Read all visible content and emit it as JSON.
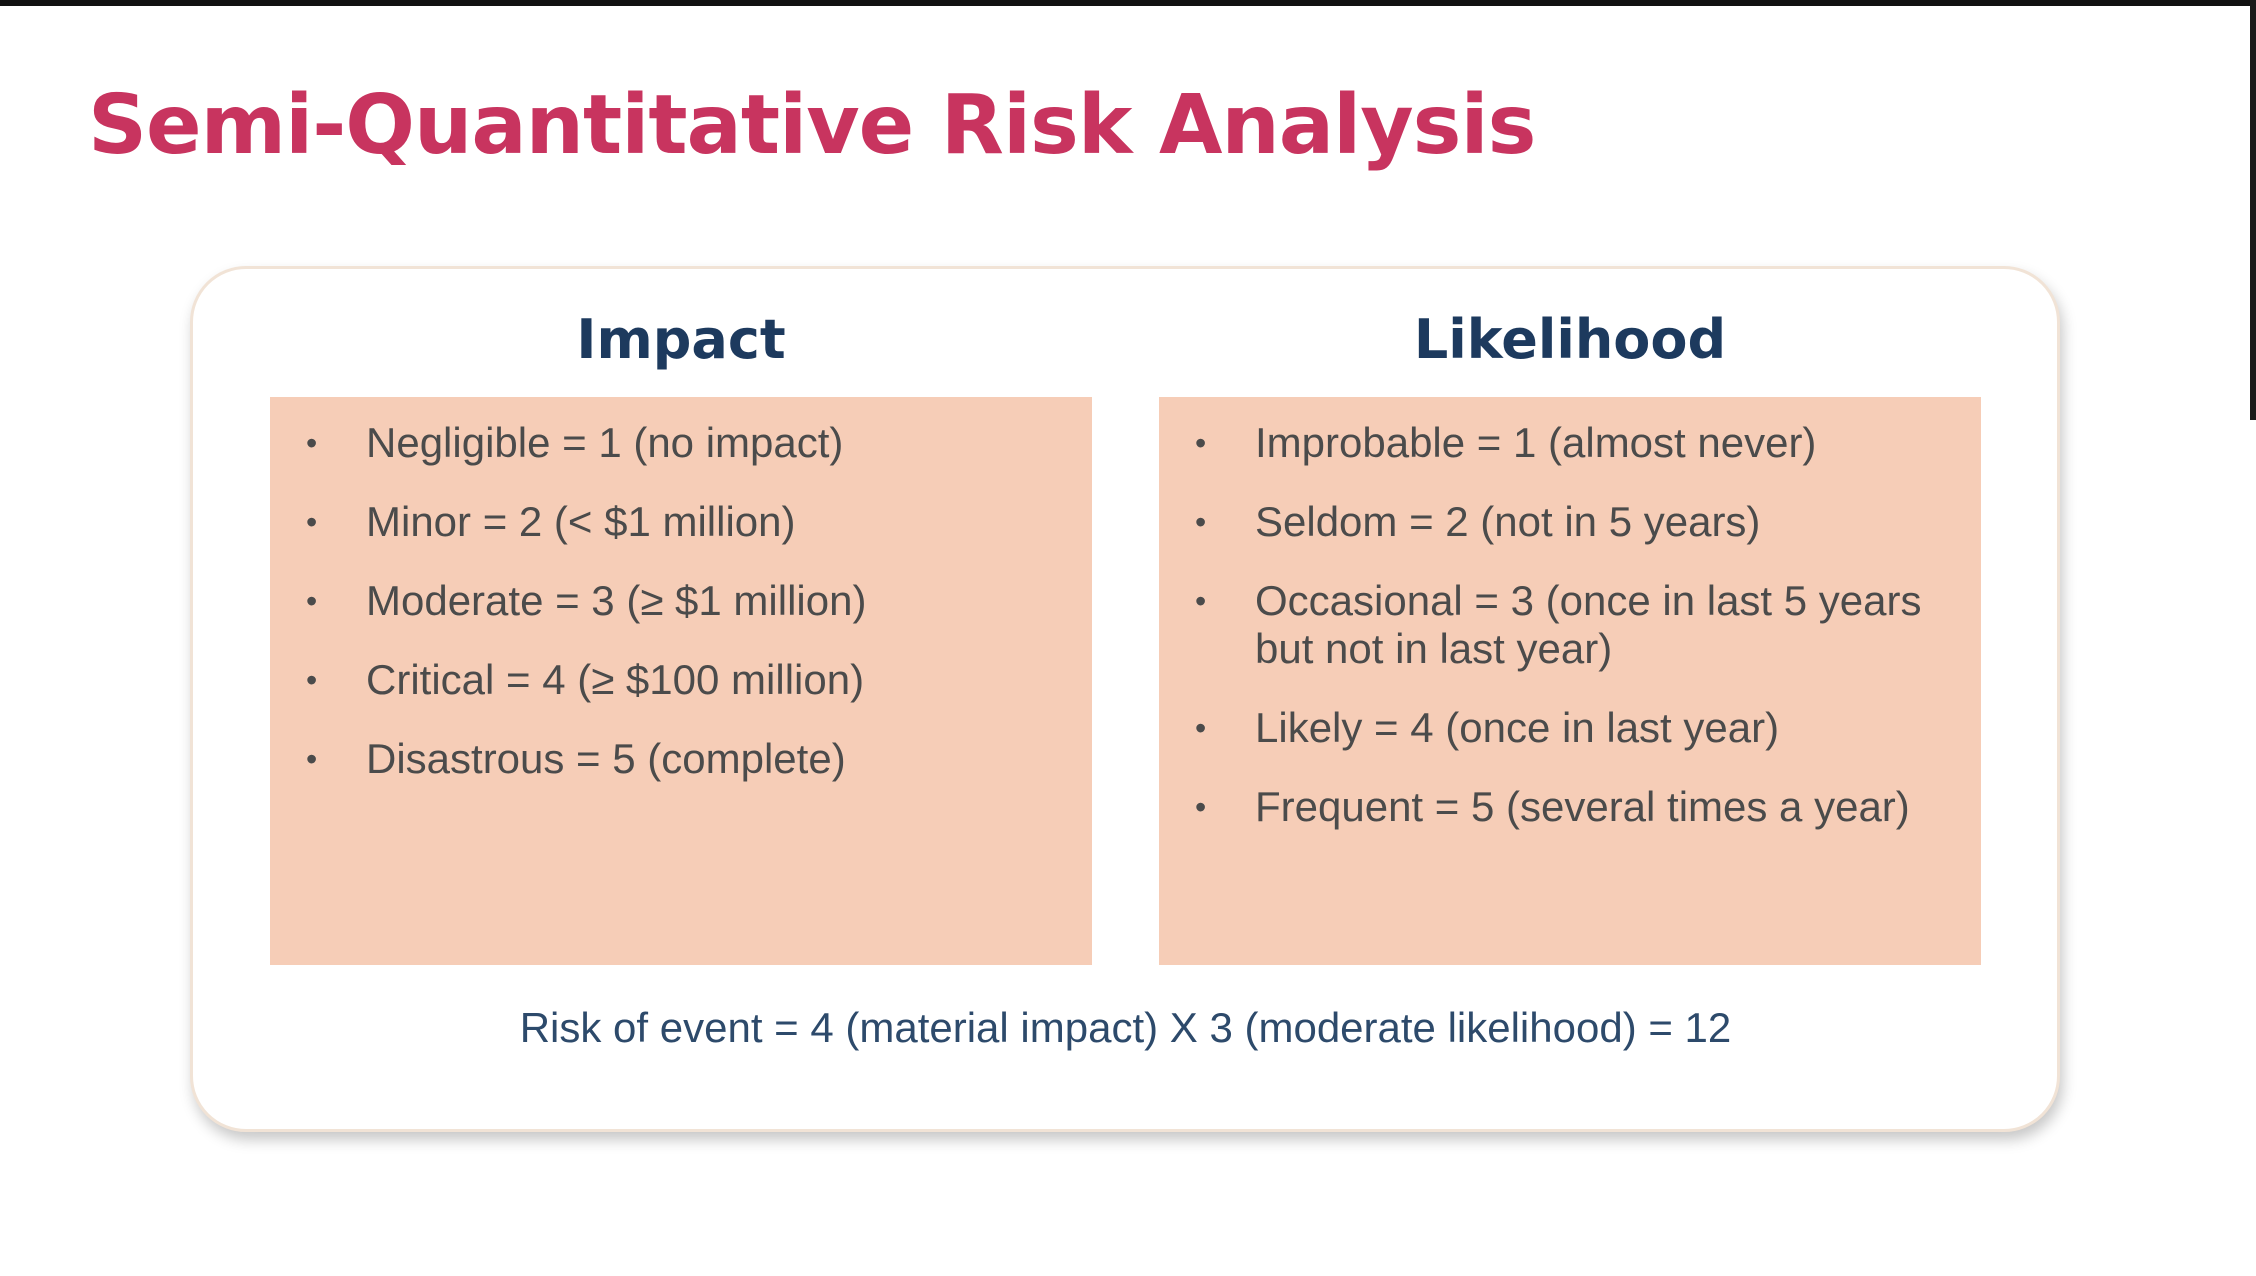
{
  "slide": {
    "title": "Semi-Quantitative Risk Analysis"
  },
  "impact": {
    "heading": "Impact",
    "items": [
      "Negligible = 1 (no impact)",
      "Minor = 2 (< $1 million)",
      "Moderate = 3 (≥ $1 million)",
      "Critical = 4 (≥ $100 million)",
      "Disastrous = 5 (complete)"
    ]
  },
  "likelihood": {
    "heading": "Likelihood",
    "items": [
      "Improbable = 1 (almost never)",
      "Seldom = 2 (not in 5 years)",
      "Occasional = 3 (once in last 5 years but not in last year)",
      "Likely = 4 (once in last year)",
      "Frequent = 5 (several times a year)"
    ]
  },
  "formula": "Risk of event = 4 (material impact) X 3 (moderate likelihood) = 12",
  "colors": {
    "title": "#c8345f",
    "heading": "#1d3a5e",
    "panel_fill": "#f6cdb7",
    "body_text": "#4b4b4b",
    "formula_text": "#2d4a6b"
  }
}
